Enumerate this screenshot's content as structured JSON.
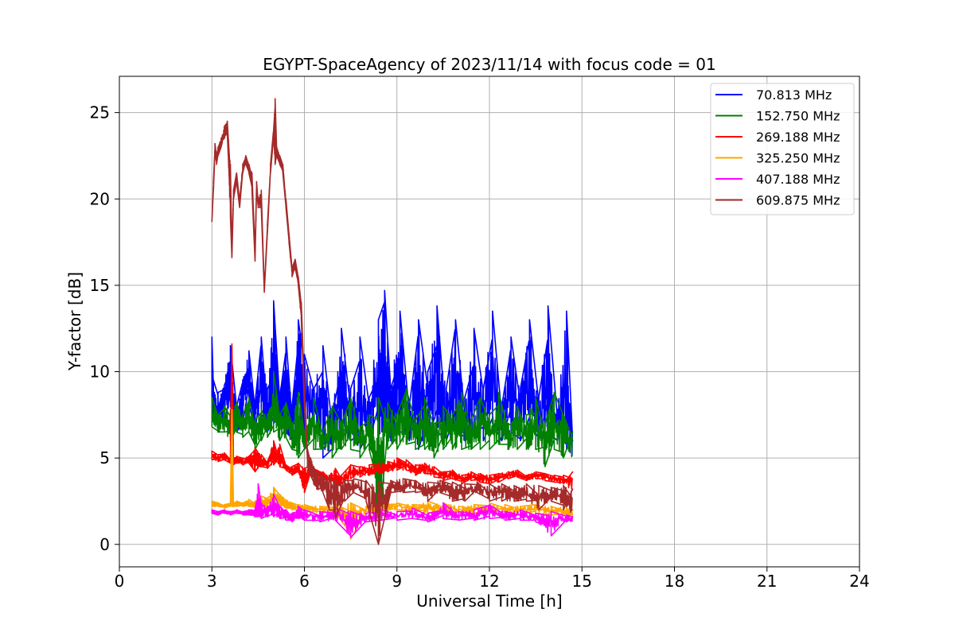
{
  "chart_data": {
    "type": "line",
    "title": "EGYPT-SpaceAgency of 2023/11/14 with focus code = 01",
    "xlabel": "Universal Time [h]",
    "ylabel": "Y-factor [dB]",
    "xlim": [
      0,
      24
    ],
    "ylim": [
      -1.3,
      27.1
    ],
    "xticks": [
      "0",
      "3",
      "6",
      "9",
      "12",
      "15",
      "18",
      "21",
      "24"
    ],
    "yticks": [
      "0",
      "5",
      "10",
      "15",
      "20",
      "25"
    ],
    "grid": true,
    "legend_position": "top-right",
    "series": [
      {
        "name": " 70.813 MHz",
        "color": "#0000ff",
        "x": [
          3.0,
          3.05,
          3.2,
          3.4,
          3.6,
          3.8,
          4.0,
          4.2,
          4.4,
          4.6,
          4.8,
          5.0,
          5.2,
          5.4,
          5.6,
          5.8,
          6.0,
          6.3,
          6.6,
          6.9,
          7.2,
          7.5,
          7.8,
          8.1,
          8.4,
          8.6,
          8.8,
          9.1,
          9.4,
          9.7,
          10.0,
          10.3,
          10.6,
          10.9,
          11.2,
          11.5,
          11.8,
          12.1,
          12.4,
          12.7,
          13.0,
          13.3,
          13.6,
          13.9,
          14.2,
          14.5,
          14.7
        ],
        "y": [
          12.0,
          9.5,
          8.8,
          9.2,
          11.5,
          8.0,
          9.5,
          11.2,
          8.2,
          12.0,
          9.0,
          14.1,
          8.5,
          12.0,
          8.0,
          13.0,
          11.0,
          9.0,
          11.5,
          7.5,
          12.5,
          9.0,
          12.0,
          8.5,
          13.0,
          14.7,
          9.0,
          13.5,
          8.0,
          13.0,
          10.0,
          13.8,
          9.0,
          13.0,
          8.5,
          12.5,
          9.0,
          13.5,
          8.0,
          12.0,
          9.0,
          13.0,
          8.5,
          13.8,
          7.5,
          13.5,
          6.0
        ],
        "min_y": [
          8.5,
          7.5,
          6.5,
          7.0,
          8.0,
          6.5,
          7.0,
          8.0,
          6.5,
          7.5,
          6.5,
          7.0,
          7.0,
          6.5,
          6.0,
          6.5,
          6.0,
          6.5,
          5.0,
          5.5,
          6.5,
          6.0,
          5.5,
          6.0,
          6.0,
          6.5,
          6.0,
          6.5,
          6.0,
          5.5,
          6.0,
          6.5,
          6.0,
          6.5,
          6.0,
          6.5,
          6.0,
          7.0,
          6.0,
          6.5,
          6.0,
          7.0,
          6.0,
          6.5,
          6.0,
          5.5,
          5.0
        ]
      },
      {
        "name": "152.750 MHz",
        "color": "#008000",
        "x": [
          3.0,
          3.2,
          3.4,
          3.6,
          3.8,
          4.0,
          4.2,
          4.4,
          4.6,
          4.8,
          5.0,
          5.2,
          5.4,
          5.6,
          5.8,
          6.0,
          6.3,
          6.6,
          6.9,
          7.2,
          7.5,
          7.8,
          8.1,
          8.4,
          8.7,
          9.0,
          9.3,
          9.6,
          9.9,
          10.2,
          10.5,
          10.8,
          11.1,
          11.4,
          11.7,
          12.0,
          12.3,
          12.6,
          12.9,
          13.2,
          13.5,
          13.8,
          14.1,
          14.4,
          14.7
        ],
        "y": [
          8.5,
          7.5,
          8.0,
          7.8,
          8.2,
          7.5,
          8.5,
          7.2,
          7.8,
          7.5,
          10.0,
          7.5,
          8.2,
          7.0,
          8.8,
          6.5,
          8.5,
          6.5,
          8.0,
          7.0,
          8.5,
          6.8,
          7.5,
          8.5,
          8.2,
          7.5,
          9.0,
          7.2,
          8.5,
          7.0,
          8.0,
          7.5,
          8.8,
          7.2,
          8.5,
          7.5,
          8.8,
          7.0,
          8.0,
          7.5,
          8.5,
          7.0,
          8.8,
          7.5,
          6.5
        ],
        "min_y": [
          6.8,
          6.5,
          6.5,
          6.0,
          6.5,
          6.2,
          6.5,
          5.5,
          6.0,
          6.2,
          6.5,
          6.0,
          6.2,
          5.5,
          5.0,
          5.5,
          5.5,
          5.5,
          5.0,
          5.5,
          5.5,
          5.0,
          5.5,
          0.5,
          5.5,
          5.5,
          5.8,
          5.5,
          5.5,
          5.0,
          5.5,
          5.5,
          5.5,
          5.5,
          5.5,
          5.5,
          5.8,
          5.5,
          5.5,
          5.5,
          5.5,
          4.5,
          5.5,
          5.0,
          5.0
        ]
      },
      {
        "name": "269.188 MHz",
        "color": "#ff0000",
        "x": [
          3.0,
          3.2,
          3.4,
          3.6,
          3.65,
          3.7,
          3.8,
          4.0,
          4.2,
          4.4,
          4.6,
          4.8,
          5.0,
          5.1,
          5.2,
          5.4,
          5.6,
          5.8,
          6.0,
          6.2,
          6.4,
          6.6,
          6.8,
          7.0,
          7.2,
          7.5,
          7.8,
          8.1,
          8.4,
          8.7,
          9.0,
          9.3,
          9.6,
          9.9,
          10.2,
          10.5,
          10.8,
          11.1,
          11.4,
          11.7,
          12.0,
          12.3,
          12.6,
          12.9,
          13.2,
          13.5,
          13.8,
          14.1,
          14.4,
          14.7
        ],
        "y": [
          5.4,
          5.2,
          5.3,
          5.0,
          11.6,
          5.0,
          5.1,
          5.0,
          5.1,
          5.6,
          5.2,
          4.8,
          6.0,
          5.4,
          5.8,
          4.6,
          4.5,
          4.7,
          4.4,
          4.6,
          4.3,
          4.2,
          4.0,
          4.4,
          4.0,
          4.6,
          4.5,
          4.6,
          4.7,
          4.8,
          5.0,
          4.9,
          4.6,
          4.7,
          4.5,
          4.2,
          4.3,
          4.0,
          4.2,
          4.1,
          4.0,
          4.1,
          4.2,
          4.3,
          4.0,
          4.2,
          4.1,
          4.0,
          4.0,
          4.2
        ],
        "min_y": [
          4.9,
          4.8,
          4.9,
          4.7,
          4.7,
          4.6,
          4.7,
          4.6,
          4.7,
          4.2,
          4.5,
          4.4,
          4.6,
          4.8,
          4.5,
          4.3,
          4.0,
          4.2,
          3.0,
          4.1,
          3.8,
          3.7,
          3.6,
          3.2,
          3.5,
          3.8,
          3.9,
          4.0,
          4.1,
          4.2,
          4.3,
          4.3,
          4.0,
          4.1,
          3.9,
          3.7,
          3.8,
          3.5,
          3.7,
          3.6,
          3.5,
          3.6,
          3.8,
          3.9,
          3.7,
          3.8,
          3.7,
          3.6,
          3.5,
          3.0
        ]
      },
      {
        "name": "325.250 MHz",
        "color": "#ffa500",
        "x": [
          3.0,
          3.2,
          3.4,
          3.6,
          3.65,
          3.7,
          3.8,
          4.0,
          4.2,
          4.4,
          4.6,
          4.8,
          5.0,
          5.2,
          5.4,
          5.6,
          5.8,
          6.0,
          6.5,
          7.0,
          7.5,
          8.0,
          8.5,
          9.0,
          9.5,
          10.0,
          10.5,
          11.0,
          11.5,
          12.0,
          12.5,
          13.0,
          13.5,
          14.0,
          14.5,
          14.7
        ],
        "y": [
          2.5,
          2.4,
          2.3,
          2.4,
          7.8,
          2.4,
          2.5,
          2.4,
          2.6,
          2.5,
          2.8,
          2.7,
          3.3,
          2.9,
          2.6,
          2.4,
          2.3,
          2.3,
          2.2,
          2.3,
          2.4,
          2.2,
          2.3,
          2.4,
          2.3,
          2.5,
          2.4,
          2.2,
          2.3,
          2.4,
          2.3,
          2.2,
          2.3,
          2.2,
          2.1,
          2.0
        ],
        "min_y": [
          2.2,
          2.2,
          2.1,
          2.2,
          2.2,
          2.2,
          2.2,
          2.2,
          2.2,
          2.1,
          2.2,
          2.1,
          2.2,
          2.2,
          2.1,
          2.0,
          2.0,
          1.9,
          1.8,
          1.9,
          0.3,
          1.9,
          1.9,
          2.0,
          1.9,
          1.8,
          1.8,
          1.8,
          1.8,
          1.9,
          1.8,
          1.8,
          1.8,
          1.7,
          1.6,
          1.5
        ]
      },
      {
        "name": "407.188 MHz",
        "color": "#ff00ff",
        "x": [
          3.0,
          3.2,
          3.4,
          3.6,
          3.8,
          4.0,
          4.2,
          4.4,
          4.5,
          4.6,
          4.8,
          5.0,
          5.2,
          5.4,
          5.6,
          5.8,
          6.0,
          6.5,
          7.0,
          7.5,
          8.0,
          8.5,
          9.0,
          9.5,
          10.0,
          10.5,
          11.0,
          11.5,
          12.0,
          12.5,
          13.0,
          13.5,
          14.0,
          14.5,
          14.7
        ],
        "y": [
          2.0,
          1.9,
          2.0,
          1.9,
          2.0,
          1.9,
          2.0,
          2.1,
          3.5,
          2.4,
          2.2,
          2.9,
          2.2,
          2.0,
          1.8,
          2.2,
          2.0,
          1.9,
          2.1,
          1.9,
          1.8,
          2.0,
          1.9,
          2.1,
          1.8,
          2.4,
          1.9,
          2.0,
          2.3,
          1.9,
          2.0,
          1.8,
          1.9,
          1.7,
          1.6
        ],
        "min_y": [
          1.8,
          1.7,
          1.8,
          1.7,
          1.8,
          1.7,
          1.7,
          1.6,
          1.6,
          1.5,
          1.6,
          1.6,
          1.5,
          1.4,
          1.3,
          1.5,
          1.4,
          1.3,
          1.4,
          0.4,
          1.3,
          1.4,
          1.4,
          1.5,
          1.3,
          1.5,
          1.4,
          1.4,
          1.5,
          1.4,
          1.4,
          1.3,
          0.5,
          1.3,
          1.2
        ]
      },
      {
        "name": "609.875 MHz",
        "color": "#a52a2a",
        "x": [
          3.0,
          3.05,
          3.1,
          3.15,
          3.2,
          3.3,
          3.4,
          3.5,
          3.6,
          3.65,
          3.7,
          3.8,
          3.9,
          4.0,
          4.1,
          4.2,
          4.3,
          4.4,
          4.45,
          4.5,
          4.6,
          4.7,
          4.8,
          4.9,
          5.0,
          5.05,
          5.1,
          5.2,
          5.3,
          5.4,
          5.5,
          5.6,
          5.7,
          5.8,
          5.9,
          6.0,
          6.1,
          6.2,
          6.3,
          6.4,
          6.6,
          6.8,
          7.0,
          7.3,
          7.6,
          8.0,
          8.4,
          8.8,
          9.2,
          9.6,
          10.0,
          10.4,
          10.8,
          11.2,
          11.6,
          12.0,
          12.4,
          12.8,
          13.2,
          13.6,
          14.0,
          14.4,
          14.7
        ],
        "y": [
          18.7,
          21.0,
          23.2,
          22.5,
          23.0,
          23.5,
          24.2,
          24.5,
          22.0,
          17.0,
          20.5,
          21.5,
          20.0,
          22.0,
          22.5,
          22.0,
          21.5,
          17.0,
          21.0,
          20.0,
          20.5,
          14.8,
          18.5,
          22.0,
          24.0,
          25.8,
          23.0,
          22.5,
          22.0,
          20.0,
          18.0,
          16.0,
          16.5,
          15.5,
          14.0,
          9.0,
          5.5,
          5.0,
          4.5,
          4.2,
          4.0,
          3.9,
          3.8,
          3.7,
          3.8,
          3.7,
          3.6,
          3.7,
          3.8,
          3.7,
          3.6,
          3.7,
          3.6,
          3.5,
          3.6,
          3.5,
          3.5,
          3.4,
          3.5,
          3.4,
          3.3,
          3.4,
          3.2
        ],
        "min_y": [
          18.7,
          20.5,
          22.5,
          22.0,
          22.5,
          23.0,
          23.5,
          23.8,
          19.0,
          16.6,
          20.0,
          21.0,
          19.5,
          21.5,
          22.0,
          21.5,
          20.5,
          16.4,
          20.5,
          19.5,
          19.5,
          14.6,
          18.0,
          21.5,
          23.5,
          22.0,
          22.5,
          22.0,
          21.5,
          19.5,
          17.5,
          15.5,
          16.0,
          15.0,
          13.0,
          8.0,
          4.5,
          4.0,
          3.5,
          3.2,
          3.0,
          2.0,
          1.5,
          2.5,
          3.0,
          2.5,
          0.0,
          3.0,
          3.0,
          3.0,
          2.5,
          3.0,
          2.5,
          2.5,
          3.0,
          2.5,
          2.5,
          2.5,
          2.5,
          2.0,
          2.5,
          2.0,
          1.0
        ]
      }
    ]
  }
}
